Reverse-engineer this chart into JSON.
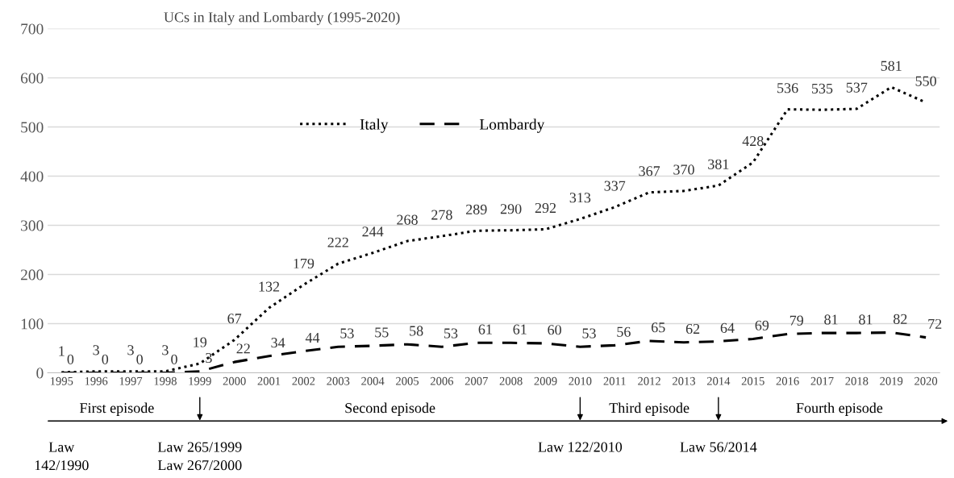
{
  "chart_data": {
    "type": "line",
    "title": "UCs in Italy and Lombardy (1995-2020)",
    "categories": [
      "1995",
      "1996",
      "1997",
      "1998",
      "1999",
      "2000",
      "2001",
      "2002",
      "2003",
      "2004",
      "2005",
      "2006",
      "2007",
      "2008",
      "2009",
      "2010",
      "2011",
      "2012",
      "2013",
      "2014",
      "2015",
      "2016",
      "2017",
      "2018",
      "2019",
      "2020"
    ],
    "series": [
      {
        "name": "Italy",
        "color": "#000000",
        "line_style": "dotted",
        "values": [
          1,
          3,
          3,
          3,
          19,
          67,
          132,
          179,
          222,
          244,
          268,
          278,
          289,
          290,
          292,
          313,
          337,
          367,
          370,
          381,
          428,
          536,
          535,
          537,
          581,
          550
        ]
      },
      {
        "name": "Lombardy",
        "color": "#000000",
        "line_style": "dashed",
        "values": [
          0,
          0,
          0,
          0,
          3,
          22,
          34,
          44,
          53,
          55,
          58,
          53,
          61,
          61,
          60,
          53,
          56,
          65,
          62,
          64,
          69,
          79,
          81,
          81,
          82,
          72
        ]
      }
    ],
    "ylim": [
      0,
      700
    ],
    "yticks": [
      0,
      100,
      200,
      300,
      400,
      500,
      600,
      700
    ],
    "grid": "y",
    "legend": "top",
    "marker": "none",
    "data_labels": true,
    "annotations": [
      "First episode",
      "Second episode",
      "Third episode",
      "Fourth episode",
      "Law\n142/1990",
      "Law 265/1999\nLaw 267/2000",
      "Law 122/2010",
      "Law 56/2014"
    ]
  }
}
